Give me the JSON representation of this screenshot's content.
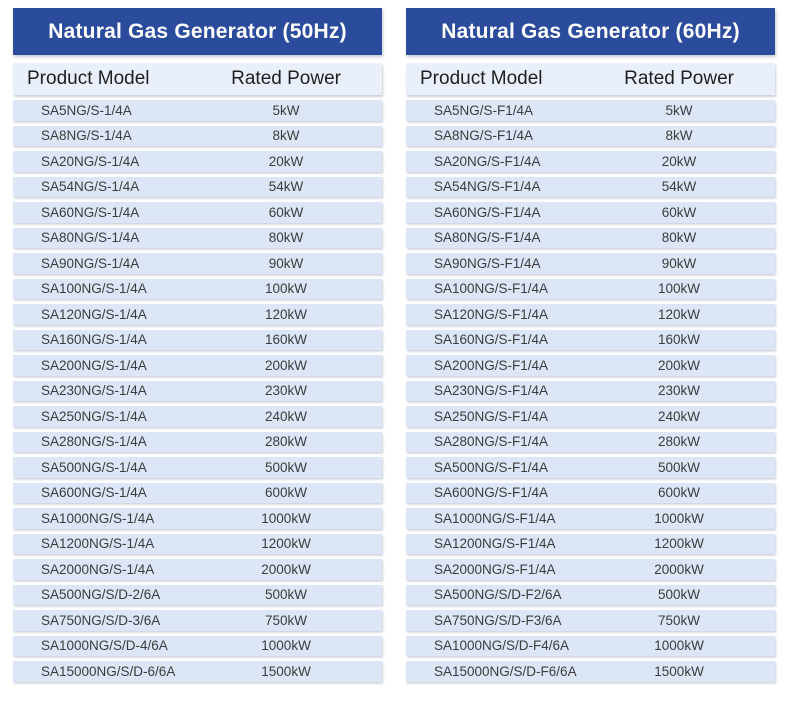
{
  "colors": {
    "title_bar_bg": "#2B4B9C",
    "title_text": "#FFFFFF",
    "column_header_bg": "#E9EFFB",
    "row_bg": "#DCE6F7",
    "header_text": "#1F1F1F",
    "row_text": "#3C3C3C",
    "page_bg": "#FFFFFF"
  },
  "tables": [
    {
      "id": "50hz",
      "title": "Natural Gas Generator (50Hz)",
      "columns": [
        "Product Model",
        "Rated Power"
      ],
      "rows": [
        [
          "SA5NG/S-1/4A",
          "5kW"
        ],
        [
          "SA8NG/S-1/4A",
          "8kW"
        ],
        [
          "SA20NG/S-1/4A",
          "20kW"
        ],
        [
          "SA54NG/S-1/4A",
          "54kW"
        ],
        [
          "SA60NG/S-1/4A",
          "60kW"
        ],
        [
          "SA80NG/S-1/4A",
          "80kW"
        ],
        [
          "SA90NG/S-1/4A",
          "90kW"
        ],
        [
          "SA100NG/S-1/4A",
          "100kW"
        ],
        [
          "SA120NG/S-1/4A",
          "120kW"
        ],
        [
          "SA160NG/S-1/4A",
          "160kW"
        ],
        [
          "SA200NG/S-1/4A",
          "200kW"
        ],
        [
          "SA230NG/S-1/4A",
          "230kW"
        ],
        [
          "SA250NG/S-1/4A",
          "240kW"
        ],
        [
          "SA280NG/S-1/4A",
          "280kW"
        ],
        [
          "SA500NG/S-1/4A",
          "500kW"
        ],
        [
          "SA600NG/S-1/4A",
          "600kW"
        ],
        [
          "SA1000NG/S-1/4A",
          "1000kW"
        ],
        [
          "SA1200NG/S-1/4A",
          "1200kW"
        ],
        [
          "SA2000NG/S-1/4A",
          "2000kW"
        ],
        [
          "SA500NG/S/D-2/6A",
          "500kW"
        ],
        [
          "SA750NG/S/D-3/6A",
          "750kW"
        ],
        [
          "SA1000NG/S/D-4/6A",
          "1000kW"
        ],
        [
          "SA15000NG/S/D-6/6A",
          "1500kW"
        ]
      ]
    },
    {
      "id": "60hz",
      "title": "Natural Gas Generator (60Hz)",
      "columns": [
        "Product Model",
        "Rated Power"
      ],
      "rows": [
        [
          "SA5NG/S-F1/4A",
          "5kW"
        ],
        [
          "SA8NG/S-F1/4A",
          "8kW"
        ],
        [
          "SA20NG/S-F1/4A",
          "20kW"
        ],
        [
          "SA54NG/S-F1/4A",
          "54kW"
        ],
        [
          "SA60NG/S-F1/4A",
          "60kW"
        ],
        [
          "SA80NG/S-F1/4A",
          "80kW"
        ],
        [
          "SA90NG/S-F1/4A",
          "90kW"
        ],
        [
          "SA100NG/S-F1/4A",
          "100kW"
        ],
        [
          "SA120NG/S-F1/4A",
          "120kW"
        ],
        [
          "SA160NG/S-F1/4A",
          "160kW"
        ],
        [
          "SA200NG/S-F1/4A",
          "200kW"
        ],
        [
          "SA230NG/S-F1/4A",
          "230kW"
        ],
        [
          "SA250NG/S-F1/4A",
          "240kW"
        ],
        [
          "SA280NG/S-F1/4A",
          "280kW"
        ],
        [
          "SA500NG/S-F1/4A",
          "500kW"
        ],
        [
          "SA600NG/S-F1/4A",
          "600kW"
        ],
        [
          "SA1000NG/S-F1/4A",
          "1000kW"
        ],
        [
          "SA1200NG/S-F1/4A",
          "1200kW"
        ],
        [
          "SA2000NG/S-F1/4A",
          "2000kW"
        ],
        [
          "SA500NG/S/D-F2/6A",
          "500kW"
        ],
        [
          "SA750NG/S/D-F3/6A",
          "750kW"
        ],
        [
          "SA1000NG/S/D-F4/6A",
          "1000kW"
        ],
        [
          "SA15000NG/S/D-F6/6A",
          "1500kW"
        ]
      ]
    }
  ]
}
